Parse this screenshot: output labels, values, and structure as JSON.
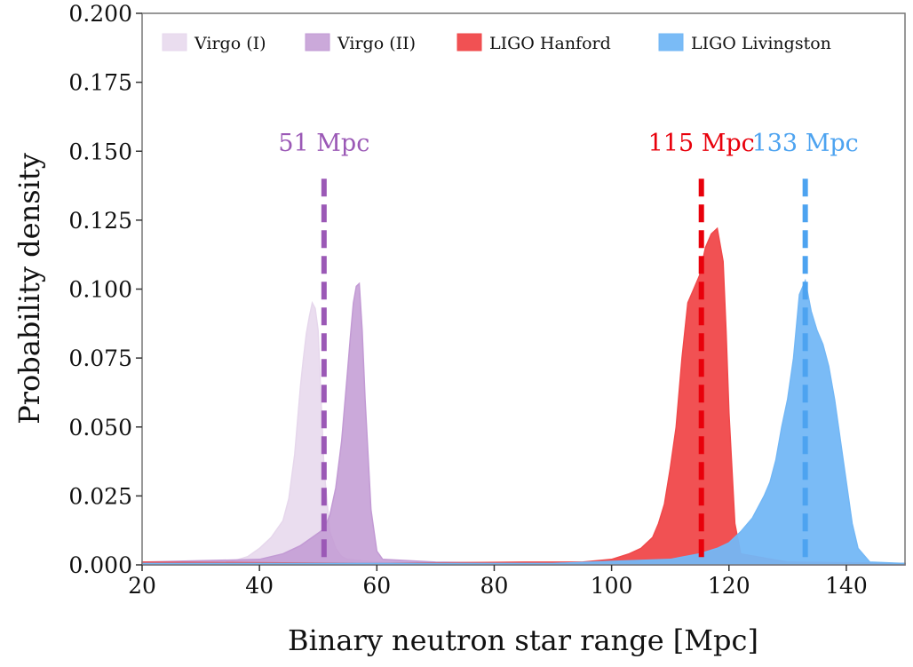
{
  "chart_data": {
    "type": "area",
    "xlabel": "Binary neutron star range [Mpc]",
    "ylabel": "Probability density",
    "xlim": [
      20,
      150
    ],
    "ylim": [
      0,
      0.2
    ],
    "x_ticks": [
      "20",
      "40",
      "60",
      "80",
      "100",
      "120",
      "140"
    ],
    "y_ticks": [
      "0.000",
      "0.025",
      "0.050",
      "0.075",
      "0.100",
      "0.125",
      "0.150",
      "0.175",
      "0.200"
    ],
    "legend_position": "top",
    "series": [
      {
        "name": "Virgo (I)",
        "color": "#e6d7ec",
        "x": [
          20,
          35,
          38,
          40,
          42,
          44,
          45,
          46,
          47,
          47.5,
          48,
          48.5,
          49,
          49.5,
          50,
          50.5,
          51,
          52,
          53,
          54,
          55,
          60,
          70,
          150
        ],
        "y": [
          0.001,
          0.001,
          0.003,
          0.006,
          0.01,
          0.016,
          0.024,
          0.04,
          0.065,
          0.075,
          0.084,
          0.09,
          0.095,
          0.093,
          0.085,
          0.06,
          0.035,
          0.012,
          0.006,
          0.003,
          0.002,
          0.001,
          0.0005,
          0.0005
        ]
      },
      {
        "name": "Virgo (II)",
        "color": "#c29ad4",
        "x": [
          20,
          40,
          44,
          47,
          49,
          51,
          52,
          53,
          54,
          55,
          55.5,
          56,
          56.5,
          57,
          57.5,
          58,
          58.5,
          59,
          60,
          61,
          70,
          90,
          150
        ],
        "y": [
          0.001,
          0.002,
          0.004,
          0.007,
          0.01,
          0.013,
          0.018,
          0.028,
          0.045,
          0.07,
          0.083,
          0.095,
          0.101,
          0.102,
          0.085,
          0.06,
          0.04,
          0.02,
          0.005,
          0.002,
          0.001,
          0.0005,
          0.0005
        ]
      },
      {
        "name": "LIGO Hanford",
        "color": "#f0484a",
        "x": [
          20,
          60,
          85,
          95,
          100,
          103,
          105,
          107,
          108,
          109,
          110,
          111,
          112,
          113,
          114,
          115,
          116,
          117,
          118,
          119,
          119.5,
          120,
          121,
          122,
          130,
          150
        ],
        "y": [
          0.001,
          0.0005,
          0.001,
          0.001,
          0.002,
          0.004,
          0.006,
          0.01,
          0.015,
          0.022,
          0.035,
          0.05,
          0.075,
          0.095,
          0.1,
          0.105,
          0.115,
          0.12,
          0.122,
          0.11,
          0.085,
          0.055,
          0.015,
          0.004,
          0.001,
          0.0005
        ]
      },
      {
        "name": "LIGO Livingston",
        "color": "#73b7f5",
        "x": [
          20,
          90,
          110,
          115,
          118,
          120,
          122,
          124,
          126,
          127,
          128,
          129,
          130,
          131,
          132,
          133,
          134,
          135,
          136,
          137,
          138,
          139,
          140,
          141,
          142,
          144,
          150
        ],
        "y": [
          0.0005,
          0.0005,
          0.002,
          0.004,
          0.006,
          0.008,
          0.012,
          0.017,
          0.025,
          0.03,
          0.038,
          0.05,
          0.06,
          0.075,
          0.098,
          0.103,
          0.092,
          0.085,
          0.08,
          0.072,
          0.06,
          0.045,
          0.03,
          0.015,
          0.006,
          0.001,
          0.0005
        ]
      }
    ],
    "medians": [
      {
        "label": "51 Mpc",
        "value": 51,
        "color": "#9b59b6"
      },
      {
        "label": "115 Mpc",
        "value": 115.3,
        "color": "#e8000b"
      },
      {
        "label": "133 Mpc",
        "value": 133,
        "color": "#4da3f0"
      }
    ]
  }
}
